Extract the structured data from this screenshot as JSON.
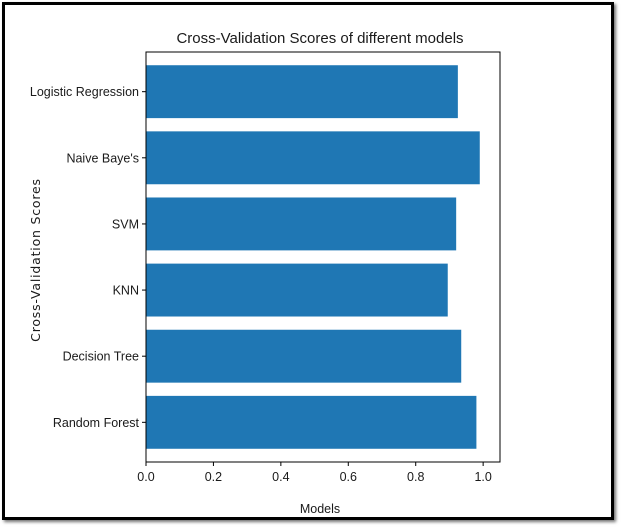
{
  "chart_data": {
    "type": "bar",
    "orientation": "horizontal",
    "title": "Cross-Validation Scores of different models",
    "xlabel": "Models",
    "ylabel": "Cross-Validation Scores",
    "categories": [
      "Logistic Regression",
      "Naive Baye's",
      "SVM",
      "KNN",
      "Decision Tree",
      "Random Forest"
    ],
    "values": [
      0.925,
      0.99,
      0.92,
      0.895,
      0.935,
      0.98
    ],
    "xlim": [
      0.0,
      1.05
    ],
    "xticks": [
      "0.0",
      "0.2",
      "0.4",
      "0.6",
      "0.8",
      "1.0"
    ],
    "xtick_values": [
      0.0,
      0.2,
      0.4,
      0.6,
      0.8,
      1.0
    ],
    "bar_color": "#1f77b4",
    "grid": false,
    "legend": "none"
  }
}
